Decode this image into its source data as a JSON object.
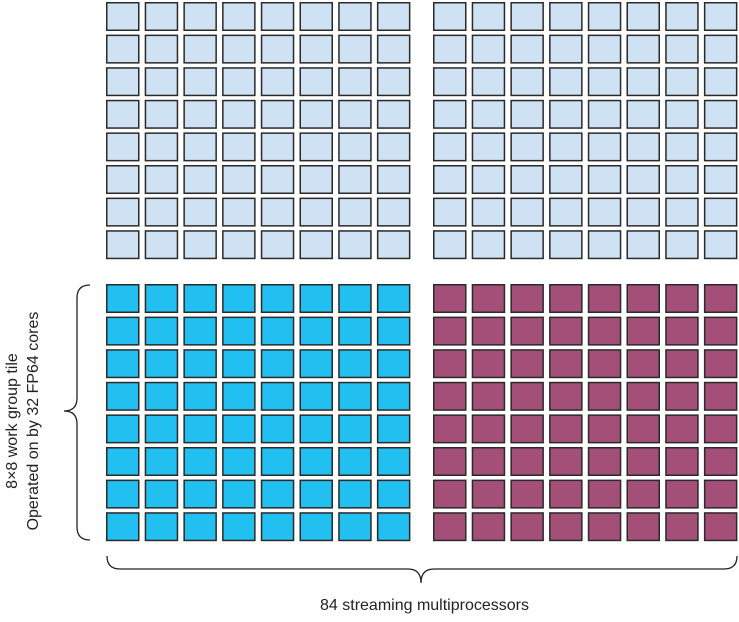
{
  "colors": {
    "idle": "#cfe2f3",
    "active_fp64": "#22c0f0",
    "active_other": "#a44f77",
    "border": "#2a2a2a"
  },
  "grid": {
    "blocks": [
      {
        "name": "top-left",
        "state": "idle"
      },
      {
        "name": "top-right",
        "state": "idle"
      },
      {
        "name": "bottom-left",
        "state": "active_fp64"
      },
      {
        "name": "bottom-right",
        "state": "active_other"
      }
    ],
    "rows_per_block": 8,
    "cols_per_block": 8
  },
  "labels": {
    "side_line1": "8×8 work group tile",
    "side_line2": "Operated on by 32 FP64 cores",
    "bottom": "84 streaming multiprocessors"
  }
}
